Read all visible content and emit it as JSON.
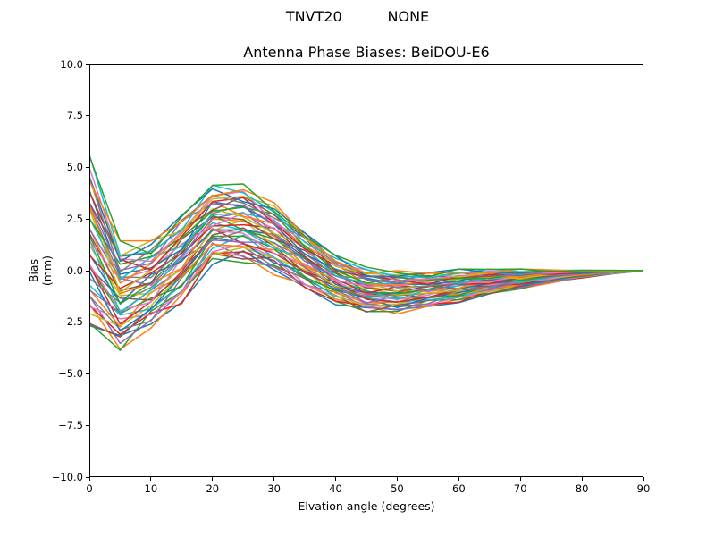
{
  "figure": {
    "suptitle": "TNVT20          NONE",
    "title": "Antenna Phase Biases: BeiDOU-E6",
    "xlabel": "Elvation angle (degrees)",
    "ylabel": "Bias (mm)"
  },
  "axis": {
    "xtick_values": [
      0,
      10,
      20,
      30,
      40,
      50,
      60,
      70,
      80,
      90
    ],
    "xtick_labels": [
      "0",
      "10",
      "20",
      "30",
      "40",
      "50",
      "60",
      "70",
      "80",
      "90"
    ],
    "ytick_values": [
      10.0,
      7.5,
      5.0,
      2.5,
      0.0,
      -2.5,
      -5.0,
      -7.5,
      -10.0
    ],
    "ytick_labels": [
      "10.0",
      "7.5",
      "5.0",
      "2.5",
      "0.0",
      "−2.5",
      "−5.0",
      "−7.5",
      "−10.0"
    ]
  },
  "chart_data": {
    "type": "line",
    "suptitle": "TNVT20          NONE",
    "title": "Antenna Phase Biases: BeiDOU-E6",
    "xlabel": "Elvation angle (degrees)",
    "ylabel": "Bias (mm)",
    "xlim": [
      0,
      90
    ],
    "ylim": [
      -10,
      10
    ],
    "grid": false,
    "legend": "none",
    "x": [
      0,
      5,
      10,
      15,
      20,
      25,
      30,
      35,
      40,
      45,
      50,
      55,
      60,
      65,
      70,
      75,
      80,
      85,
      90
    ],
    "n_series": 43,
    "band_max": [
      5.8,
      1.45,
      1.6,
      2.9,
      4.2,
      4.2,
      3.3,
      2.05,
      0.75,
      0.2,
      0.0,
      0.05,
      0.1,
      0.1,
      0.08,
      0.06,
      0.04,
      0.02,
      0.0
    ],
    "band_min": [
      -3.2,
      -3.95,
      -2.85,
      -1.6,
      0.3,
      0.3,
      -0.2,
      -0.95,
      -1.65,
      -2.1,
      -2.1,
      -1.85,
      -1.55,
      -1.2,
      -0.9,
      -0.6,
      -0.35,
      -0.15,
      0.0
    ],
    "spread_scale": 0.88,
    "jitter": [
      0.16,
      0.09
    ],
    "line_width": 1.5,
    "line_colors": [
      "#1f77b4",
      "#ff7f0e",
      "#2ca02c",
      "#d62728",
      "#9467bd",
      "#8c564b",
      "#e377c2",
      "#7f7f7f",
      "#bcbd22",
      "#17becf"
    ],
    "axis_color": "#000000"
  }
}
